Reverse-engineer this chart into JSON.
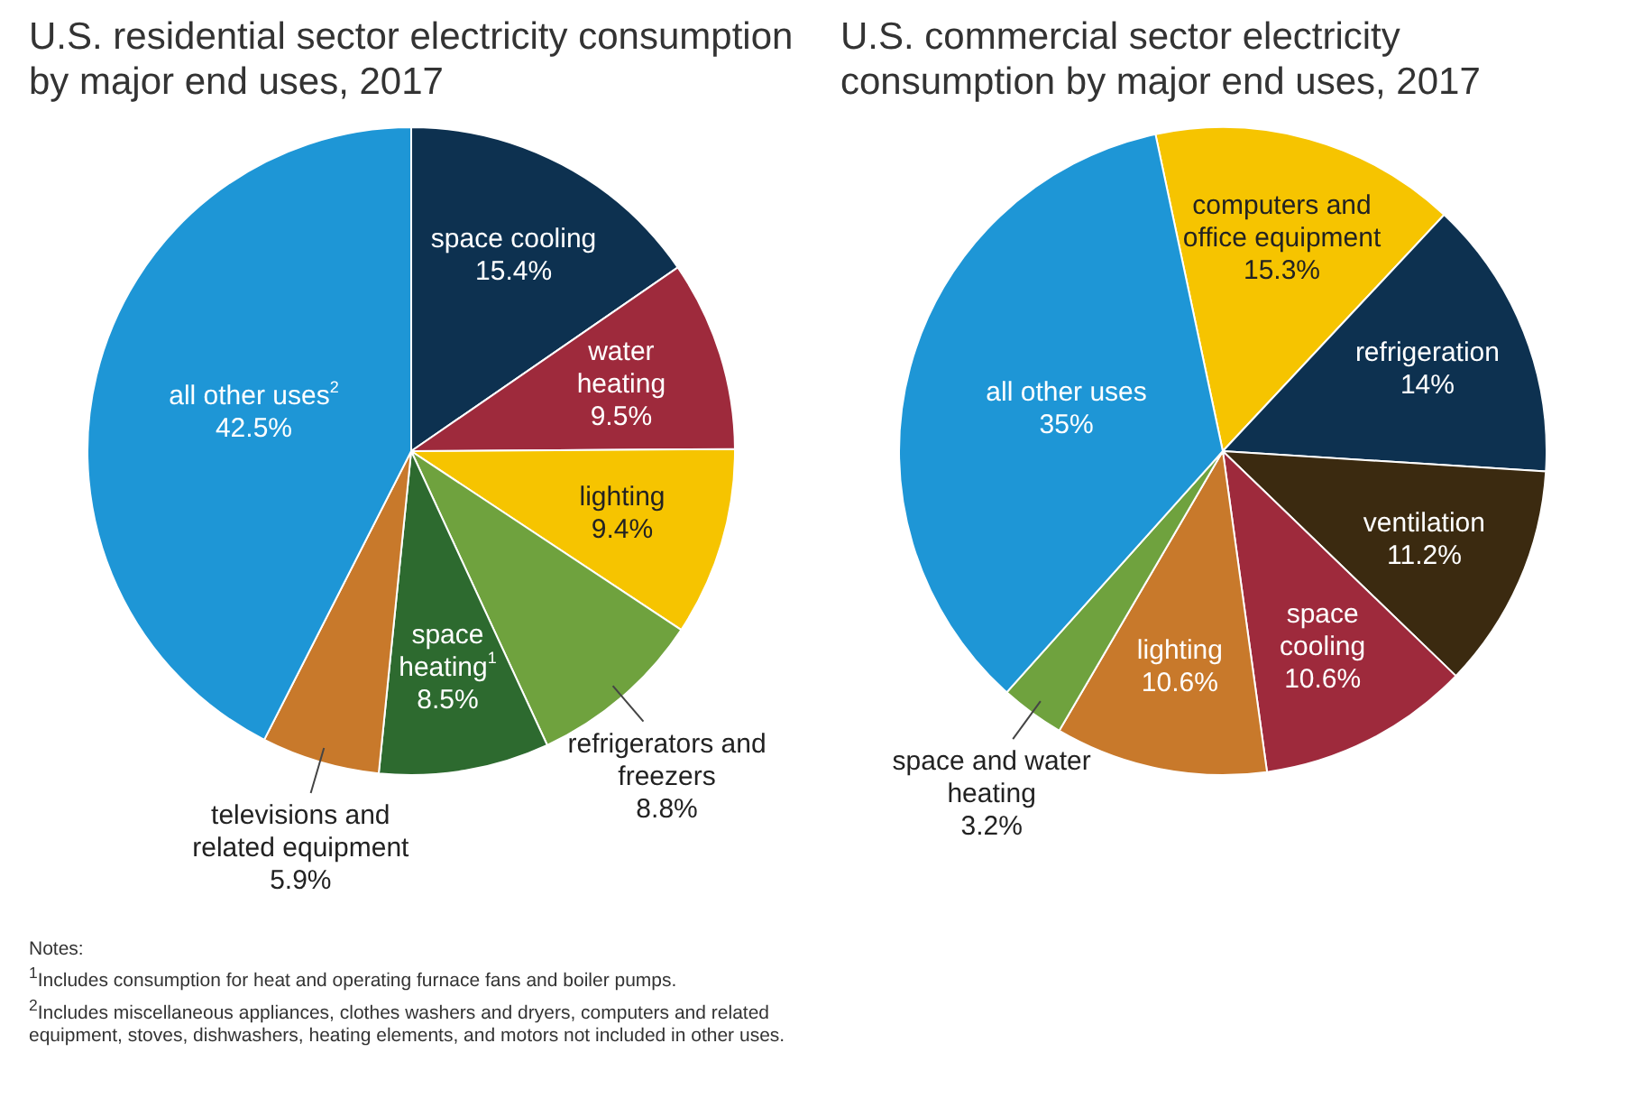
{
  "chart_data": [
    {
      "type": "pie",
      "title": "U.S. residential sector electricity consumption by major end uses, 2017",
      "categories": [
        "space cooling",
        "water heating",
        "lighting",
        "refrigerators and freezers",
        "space heating$^{1}$",
        "televisions and related equipment",
        "all other uses$^{2}$"
      ],
      "values": [
        15.4,
        9.5,
        9.4,
        8.8,
        8.5,
        5.9,
        42.5
      ],
      "value_labels": [
        "15.4%",
        "9.5%",
        "9.4%",
        "8.8%",
        "8.5%",
        "5.9%",
        "42.5%"
      ],
      "colors": [
        "#0d3150",
        "#9e2a3c",
        "#f6c400",
        "#6fa23e",
        "#2d6a2f",
        "#c8792b",
        "#1e96d6"
      ],
      "annotations": [
        "Notes:",
        "$^{1}$Includes consumption for heat and operating furnace fans and boiler pumps.",
        "$^{2}$Includes miscellaneous appliances, clothes washers and dryers, computers and related equipment, stoves, dishwashers, heating elements, and motors not included in other uses."
      ]
    },
    {
      "type": "pie",
      "title": "U.S. commercial sector electricity consumption by major end uses, 2017",
      "categories": [
        "computers and office equipment",
        "refrigeration",
        "ventilation",
        "space cooling",
        "lighting",
        "space and water heating",
        "all other uses"
      ],
      "values": [
        15.3,
        14,
        11.2,
        10.6,
        10.6,
        3.2,
        35
      ],
      "value_labels": [
        "15.3%",
        "14%",
        "11.2%",
        "10.6%",
        "10.6%",
        "3.2%",
        "35%"
      ],
      "colors": [
        "#f6c400",
        "#0d3150",
        "#3b2a10",
        "#9e2a3c",
        "#c8792b",
        "#6fa23e",
        "#1e96d6"
      ]
    }
  ]
}
